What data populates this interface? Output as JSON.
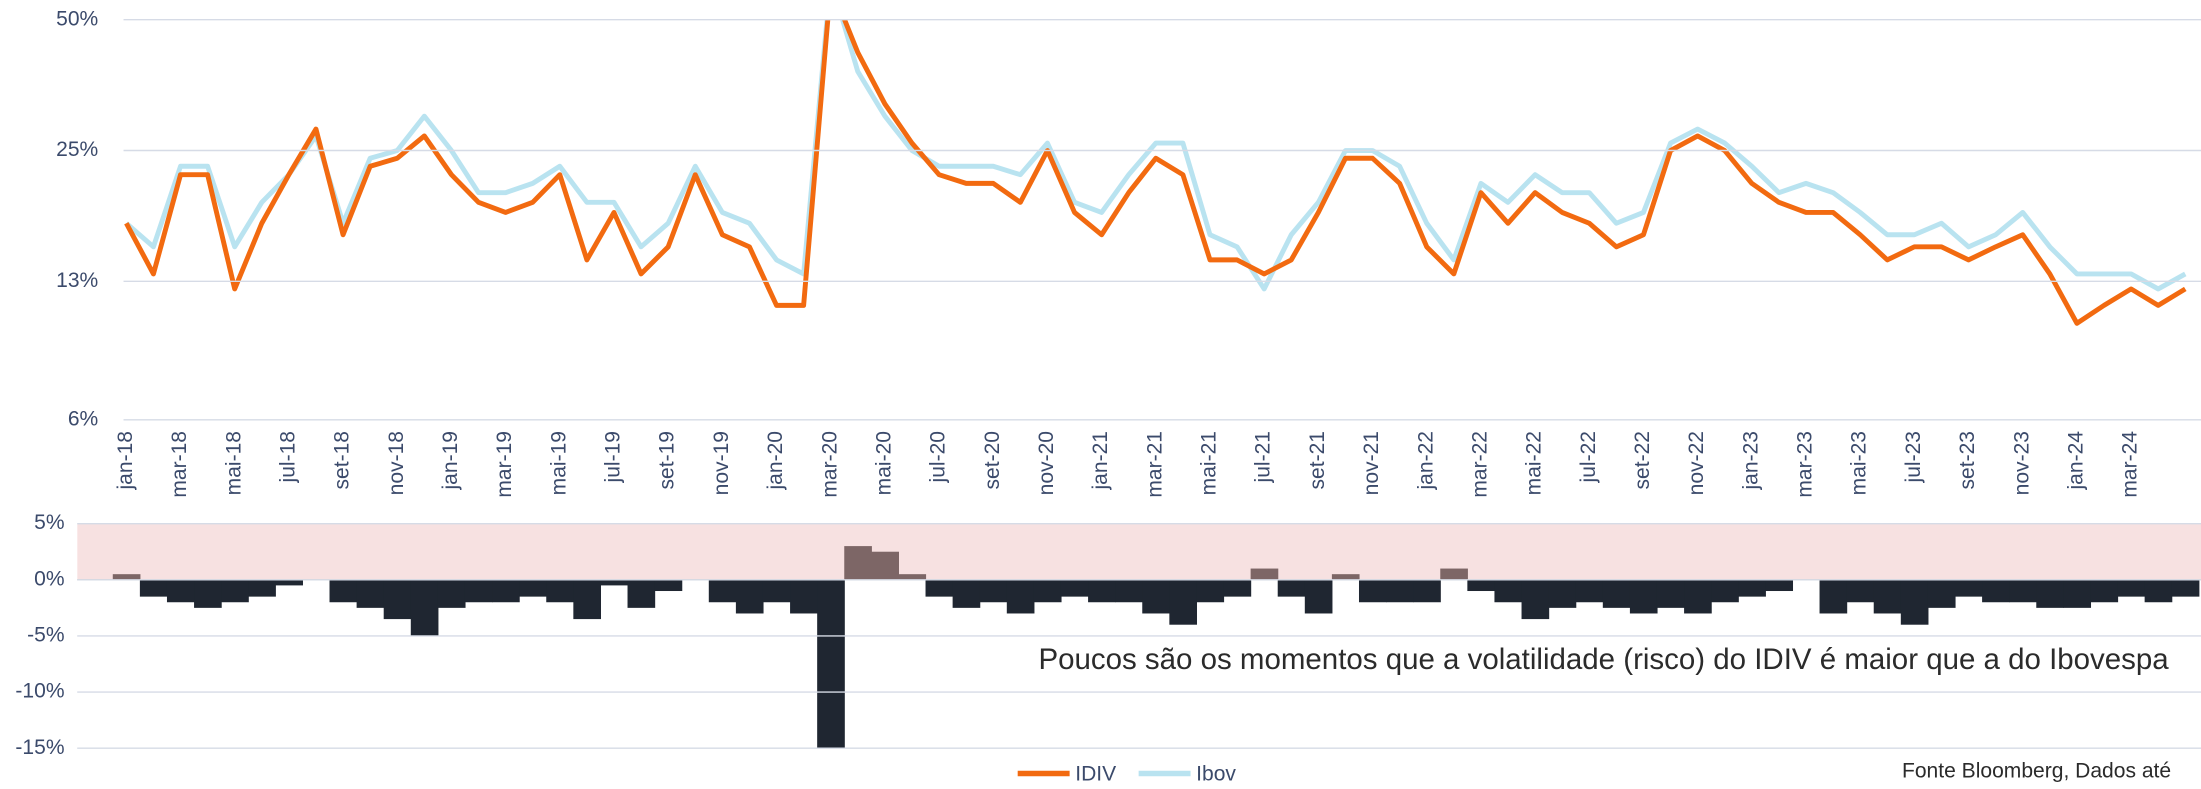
{
  "chart_data": [
    {
      "type": "line",
      "log_scale": true,
      "grid": true,
      "categories": [
        "jan-18",
        null,
        "mar-18",
        null,
        "mai-18",
        null,
        "jul-18",
        null,
        "set-18",
        null,
        "nov-18",
        null,
        "jan-19",
        null,
        "mar-19",
        null,
        "mai-19",
        null,
        "jul-19",
        null,
        "set-19",
        null,
        "nov-19",
        null,
        "jan-20",
        null,
        "mar-20",
        null,
        "mai-20",
        null,
        "jul-20",
        null,
        "set-20",
        null,
        "nov-20",
        null,
        "jan-21",
        null,
        "mar-21",
        null,
        "mai-21",
        null,
        "jul-21",
        null,
        "set-21",
        null,
        "nov-21",
        null,
        "jan-22",
        null,
        "mar-22",
        null,
        "mai-22",
        null,
        "jul-22",
        null,
        "set-22",
        null,
        "nov-22",
        null,
        "jan-23",
        null,
        "mar-23",
        null,
        "mai-23",
        null,
        "jul-23",
        null,
        "set-23",
        null,
        "nov-23",
        null,
        "jan-24",
        null,
        "mar-24",
        null,
        null
      ],
      "series": [
        {
          "name": "IDIV",
          "color": "#f26a10",
          "values": [
            17,
            13,
            22,
            22,
            12,
            17,
            22,
            28,
            16,
            23,
            24,
            27,
            22,
            19,
            18,
            19,
            22,
            14,
            18,
            13,
            15,
            22,
            16,
            15,
            11,
            11,
            60,
            42,
            32,
            26,
            22,
            21,
            21,
            19,
            25,
            18,
            16,
            20,
            24,
            22,
            14,
            14,
            13,
            14,
            18,
            24,
            24,
            21,
            15,
            13,
            20,
            17,
            20,
            18,
            17,
            15,
            16,
            25,
            27,
            25,
            21,
            19,
            18,
            18,
            16,
            14,
            15,
            15,
            14,
            15,
            16,
            13,
            10,
            11,
            12,
            11,
            12
          ]
        },
        {
          "name": "Ibov",
          "color": "#b9e3f0",
          "values": [
            17,
            15,
            23,
            23,
            15,
            19,
            22,
            27,
            17,
            24,
            25,
            30,
            25,
            20,
            20,
            21,
            23,
            19,
            19,
            15,
            17,
            23,
            18,
            17,
            14,
            13,
            62,
            38,
            30,
            25,
            23,
            23,
            23,
            22,
            26,
            19,
            18,
            22,
            26,
            26,
            16,
            15,
            12,
            16,
            19,
            25,
            25,
            23,
            17,
            14,
            21,
            19,
            22,
            20,
            20,
            17,
            18,
            26,
            28,
            26,
            23,
            20,
            21,
            20,
            18,
            16,
            16,
            17,
            15,
            16,
            18,
            15,
            13,
            13,
            13,
            12,
            13
          ]
        }
      ],
      "ylim": [
        6,
        50
      ],
      "yticks": [
        {
          "value": 6,
          "label": "6%"
        },
        {
          "value": 12.5,
          "label": "13%"
        },
        {
          "value": 25,
          "label": "25%"
        },
        {
          "value": 50,
          "label": "50%"
        }
      ]
    },
    {
      "type": "area",
      "grid": true,
      "positive_color": "#7d6666",
      "negative_color": "#1f2631",
      "band_color": "#f7e1e1",
      "values": [
        0.5,
        -1.5,
        -2,
        -2.5,
        -2,
        -1.5,
        -0.5,
        0,
        -2,
        -2.5,
        -3.5,
        -5,
        -2.5,
        -2,
        -2,
        -1.5,
        -2,
        -3.5,
        -0.5,
        -2.5,
        -1,
        0,
        -2,
        -3,
        -2,
        -3,
        -15,
        3,
        2.5,
        0.5,
        -1.5,
        -2.5,
        -2,
        -3,
        -2,
        -1.5,
        -2,
        -2,
        -3,
        -4,
        -2,
        -1.5,
        1,
        -1.5,
        -3,
        0.5,
        -2,
        -2,
        -2,
        1,
        -1,
        -2,
        -3.5,
        -2.5,
        -2,
        -2.5,
        -3,
        -2.5,
        -3,
        -2,
        -1.5,
        -1,
        0,
        -3,
        -2,
        -3,
        -4,
        -2.5,
        -1.5,
        -2,
        -2,
        -2.5,
        -2.5,
        -2,
        -1.5,
        -2,
        -1.5
      ],
      "ylim": [
        -15,
        5
      ],
      "yticks": [
        {
          "value": -15,
          "label": "-15%"
        },
        {
          "value": -10,
          "label": "-10%"
        },
        {
          "value": -5,
          "label": "-5%"
        },
        {
          "value": 0,
          "label": "0%"
        },
        {
          "value": 5,
          "label": "5%"
        }
      ],
      "annotation": "Poucos são os momentos que a volatilidade (risco) do IDIV é maior que a do Ibovespa",
      "source": "Fonte Bloomberg, Dados até"
    }
  ]
}
